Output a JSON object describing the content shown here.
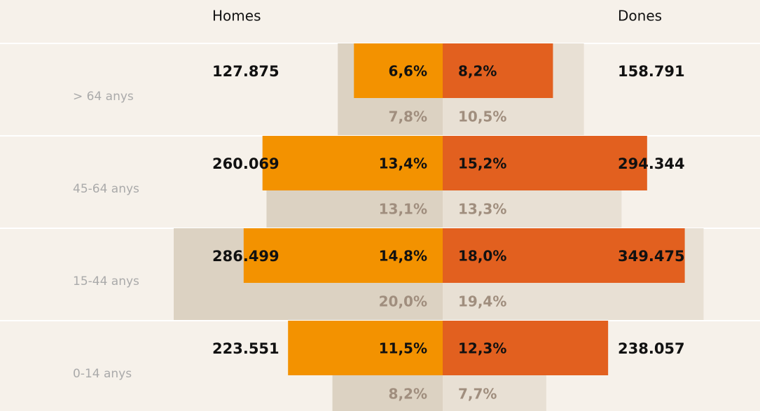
{
  "chart_data": {
    "type": "pyramid",
    "categories": [
      "> 64 anys",
      "45-64 anys",
      "15-44 anys",
      "0-14 anys"
    ],
    "series": [
      {
        "name": "Homes",
        "color": "#f39200",
        "ref_color": "#dcd2c2",
        "values": [
          6.6,
          13.4,
          14.8,
          11.5
        ],
        "value_labels": [
          "6,6%",
          "13,4%",
          "14,8%",
          "11,5%"
        ],
        "counts": [
          127875,
          260069,
          286499,
          223551
        ],
        "count_labels": [
          "127.875",
          "260.069",
          "286.499",
          "223.551"
        ],
        "ref_values": [
          7.8,
          13.1,
          20.0,
          8.2
        ],
        "ref_labels": [
          "7,8%",
          "13,1%",
          "20,0%",
          "8,2%"
        ]
      },
      {
        "name": "Dones",
        "color": "#e2601f",
        "ref_color": "#e8e0d4",
        "values": [
          8.2,
          15.2,
          18.0,
          12.3
        ],
        "value_labels": [
          "8,2%",
          "15,2%",
          "18,0%",
          "12,3%"
        ],
        "counts": [
          158791,
          294344,
          349475,
          238057
        ],
        "count_labels": [
          "158.791",
          "294.344",
          "349.475",
          "238.057"
        ],
        "ref_values": [
          10.5,
          13.3,
          19.4,
          7.7
        ],
        "ref_labels": [
          "10,5%",
          "13,3%",
          "19,4%",
          "7,7%"
        ]
      }
    ]
  }
}
